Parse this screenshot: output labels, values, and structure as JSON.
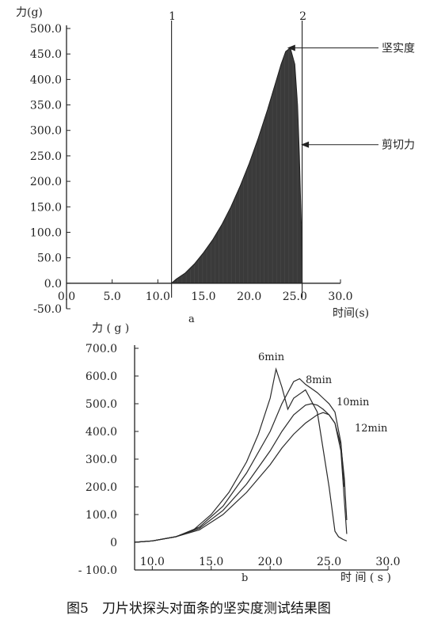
{
  "figure": {
    "caption": "图5　刀片状探头对面条的坚实度测试结果图"
  },
  "chart_data": [
    {
      "type": "area",
      "panel_label": "a",
      "ylabel": "力(g)",
      "xlabel": "时间(s)",
      "xlim": [
        0,
        30
      ],
      "ylim": [
        -50,
        500
      ],
      "x_ticks": [
        "0.0",
        "5.0",
        "10.0",
        "15.0",
        "20.0",
        "25.0",
        "30.0"
      ],
      "y_ticks": [
        "500.0",
        "450.0",
        "400.0",
        "350.0",
        "300.0",
        "250.0",
        "200.0",
        "150.0",
        "100.0",
        "50.0",
        "0.0",
        "-50.0"
      ],
      "markers": [
        {
          "label": "1",
          "x": 11.5
        },
        {
          "label": "2",
          "x": 25.8
        }
      ],
      "annotations": [
        {
          "text": "坚实度",
          "x": 24.0,
          "y": 462
        },
        {
          "text": "剪切力",
          "x": 25.5,
          "y": 272
        }
      ],
      "series": [
        {
          "x": [
            11.5,
            12.0,
            13.0,
            14.0,
            15.0,
            16.0,
            17.0,
            18.0,
            19.0,
            20.0,
            21.0,
            22.0,
            23.0,
            23.5,
            24.0,
            24.5,
            25.0,
            25.3,
            25.5,
            25.7,
            25.8
          ],
          "y": [
            0,
            8,
            20,
            38,
            60,
            85,
            115,
            150,
            190,
            235,
            285,
            340,
            400,
            430,
            455,
            462,
            430,
            350,
            250,
            120,
            0
          ]
        }
      ]
    },
    {
      "type": "line",
      "panel_label": "b",
      "ylabel": "力 ( g )",
      "xlabel": "时 间 ( s )",
      "xlim": [
        8.5,
        30
      ],
      "ylim": [
        -100,
        700
      ],
      "x_ticks": [
        "10.0",
        "15.0",
        "20.0",
        "25.0",
        "30.0"
      ],
      "y_ticks": [
        "700.0",
        "600.0",
        "500.0",
        "400.0",
        "300.0",
        "200.0",
        "100.0",
        "0",
        "- 100.0"
      ],
      "series": [
        {
          "name": "6min",
          "x": [
            8.5,
            10,
            12,
            13.5,
            15,
            16.5,
            18,
            19,
            20,
            20.5,
            21,
            21.5,
            22,
            23,
            24,
            25,
            25.5,
            25.8,
            26,
            26.2,
            26.5
          ],
          "y": [
            0,
            5,
            20,
            45,
            100,
            180,
            290,
            390,
            520,
            625,
            560,
            480,
            520,
            550,
            470,
            200,
            40,
            20,
            15,
            10,
            5
          ]
        },
        {
          "name": "8min",
          "x": [
            8.5,
            10,
            12,
            14,
            16,
            18,
            20,
            21,
            22,
            22.5,
            23,
            23.5,
            24,
            24.5,
            25,
            25.5,
            26,
            26.3
          ],
          "y": [
            0,
            5,
            20,
            55,
            130,
            250,
            400,
            500,
            580,
            590,
            570,
            555,
            540,
            520,
            500,
            470,
            360,
            200
          ]
        },
        {
          "name": "10min",
          "x": [
            8.5,
            10,
            12,
            14,
            16,
            18,
            20,
            21,
            22,
            23,
            23.5,
            24,
            24.5,
            25,
            25.5,
            26,
            26.3,
            26.5
          ],
          "y": [
            0,
            5,
            20,
            50,
            115,
            210,
            330,
            400,
            460,
            495,
            500,
            495,
            480,
            460,
            430,
            350,
            230,
            80
          ]
        },
        {
          "name": "12min",
          "x": [
            8.5,
            10,
            12,
            14,
            16,
            18,
            20,
            21,
            22,
            23,
            24,
            24.5,
            25,
            25.5,
            26,
            26.3,
            26.5
          ],
          "y": [
            0,
            5,
            20,
            45,
            100,
            180,
            280,
            340,
            390,
            430,
            460,
            468,
            460,
            430,
            330,
            150,
            30
          ]
        }
      ]
    }
  ]
}
